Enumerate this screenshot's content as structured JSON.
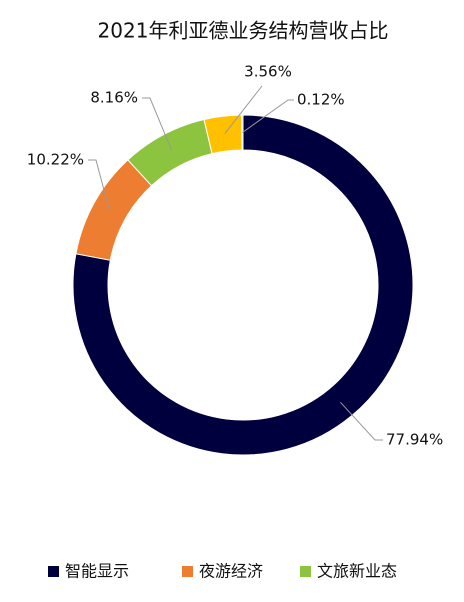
{
  "chart_data": {
    "type": "donut",
    "title": "2021年利亚德业务结构营收占比",
    "categories": [
      "智能显示",
      "夜游经济",
      "文旅新业态",
      null,
      null
    ],
    "values": [
      77.94,
      10.22,
      8.16,
      3.56,
      0.12
    ],
    "value_labels": [
      "77.94%",
      "10.22%",
      "8.16%",
      "3.56%",
      "0.12%"
    ],
    "colors": [
      "#00003f",
      "#ed7d31",
      "#8cc33f",
      "#ffc000",
      "#bfbfbf"
    ],
    "legend": "bottom"
  }
}
